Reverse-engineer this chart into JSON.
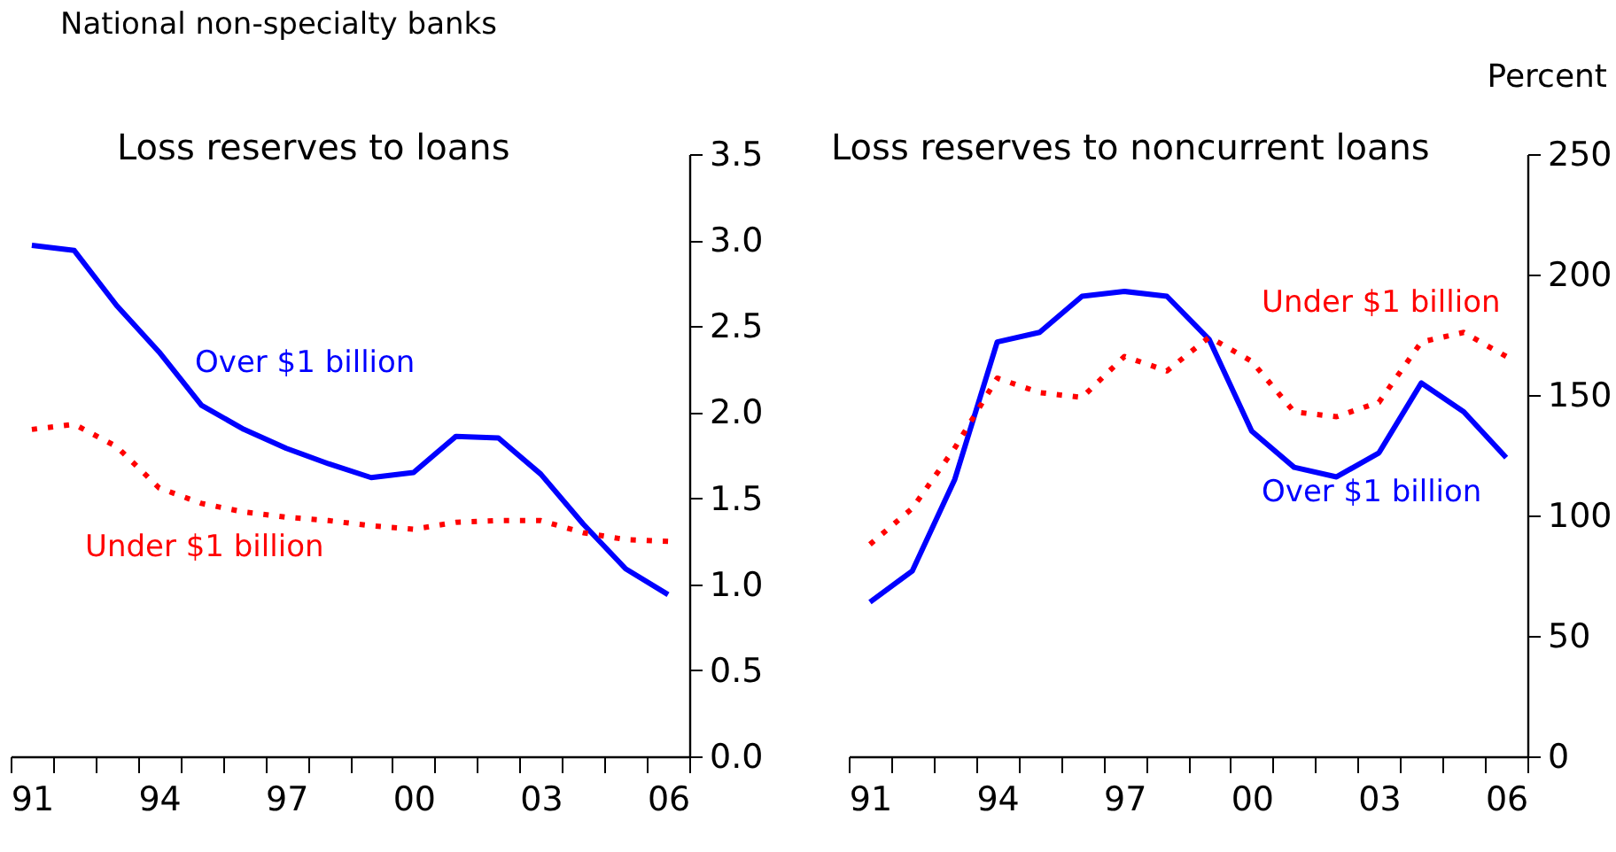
{
  "chart_data": [
    {
      "type": "line",
      "title": "Loss reserves to loans",
      "annotations": [
        "National non-specialty banks"
      ],
      "categories": [
        "91",
        null,
        null,
        "94",
        null,
        null,
        "97",
        null,
        null,
        "00",
        null,
        null,
        "03",
        null,
        null,
        "06"
      ],
      "ylim": [
        0,
        3.5
      ],
      "yticks": [
        {
          "value": 0,
          "label": "0.0"
        },
        {
          "value": 0.5,
          "label": "0.5"
        },
        {
          "value": 1,
          "label": "1.0"
        },
        {
          "value": 1.5,
          "label": "1.5"
        },
        {
          "value": 2,
          "label": "2.0"
        },
        {
          "value": 2.5,
          "label": "2.5"
        },
        {
          "value": 3,
          "label": "3.0"
        },
        {
          "value": 3.5,
          "label": "3.5"
        }
      ],
      "legend": false,
      "grid": false,
      "series": [
        {
          "name": "Over $1 billion",
          "color": "#0000ff",
          "line_style": "solid",
          "values": [
            2.97,
            2.94,
            2.62,
            2.35,
            2.04,
            1.9,
            1.79,
            1.7,
            1.62,
            1.65,
            1.86,
            1.85,
            1.64,
            1.35,
            1.09,
            0.94
          ]
        },
        {
          "name": "Under $1 billion",
          "color": "#ff0000",
          "line_style": "dotted",
          "values": [
            1.9,
            1.93,
            1.8,
            1.56,
            1.47,
            1.42,
            1.39,
            1.37,
            1.34,
            1.32,
            1.36,
            1.37,
            1.37,
            1.3,
            1.26,
            1.25
          ]
        }
      ]
    },
    {
      "type": "line",
      "title": "Loss reserves to noncurrent loans",
      "ylabel": "Percent",
      "categories": [
        "91",
        null,
        null,
        "94",
        null,
        null,
        "97",
        null,
        null,
        "00",
        null,
        null,
        "03",
        null,
        null,
        "06"
      ],
      "ylim": [
        0,
        250
      ],
      "yticks": [
        0,
        50,
        100,
        150,
        200,
        250
      ],
      "legend": false,
      "grid": false,
      "series": [
        {
          "name": "Over $1 billion",
          "color": "#0000ff",
          "line_style": "solid",
          "values": [
            64,
            77,
            115,
            172,
            176,
            191,
            193,
            191,
            173,
            135,
            120,
            116,
            126,
            155,
            143,
            124
          ]
        },
        {
          "name": "Under $1 billion",
          "color": "#ff0000",
          "line_style": "dotted",
          "values": [
            88,
            103,
            128,
            157,
            151,
            149,
            166,
            160,
            174,
            164,
            143,
            141,
            147,
            172,
            176,
            166
          ]
        }
      ]
    }
  ]
}
